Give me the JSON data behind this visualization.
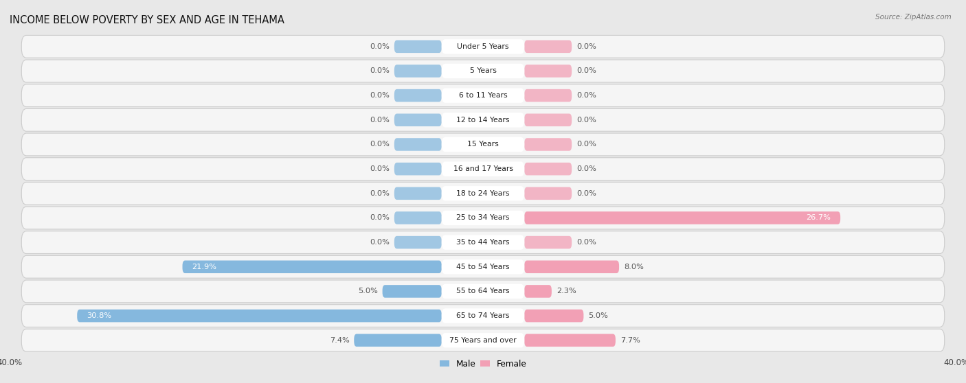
{
  "title": "INCOME BELOW POVERTY BY SEX AND AGE IN TEHAMA",
  "source": "Source: ZipAtlas.com",
  "categories": [
    "Under 5 Years",
    "5 Years",
    "6 to 11 Years",
    "12 to 14 Years",
    "15 Years",
    "16 and 17 Years",
    "18 to 24 Years",
    "25 to 34 Years",
    "35 to 44 Years",
    "45 to 54 Years",
    "55 to 64 Years",
    "65 to 74 Years",
    "75 Years and over"
  ],
  "male": [
    0.0,
    0.0,
    0.0,
    0.0,
    0.0,
    0.0,
    0.0,
    0.0,
    0.0,
    21.9,
    5.0,
    30.8,
    7.4
  ],
  "female": [
    0.0,
    0.0,
    0.0,
    0.0,
    0.0,
    0.0,
    0.0,
    26.7,
    0.0,
    8.0,
    2.3,
    5.0,
    7.7
  ],
  "male_color": "#85b8de",
  "female_color": "#f2a0b5",
  "bg_color": "#e8e8e8",
  "row_bg": "#f5f5f5",
  "row_border": "#cccccc",
  "xlim": 40.0,
  "bar_height": 0.52,
  "stub_size": 4.0,
  "title_fontsize": 10.5,
  "label_fontsize": 8.2,
  "cat_fontsize": 7.8,
  "axis_label_fontsize": 8.5,
  "source_fontsize": 7.5
}
